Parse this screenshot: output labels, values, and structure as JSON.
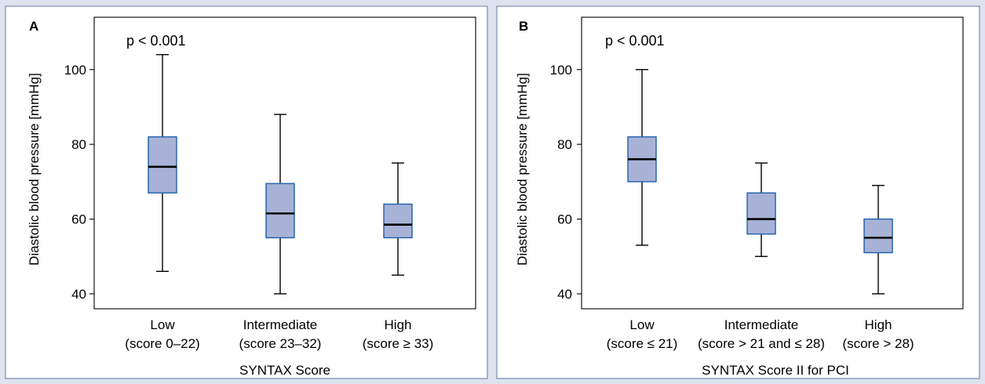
{
  "chart_data": [
    {
      "type": "box",
      "panel_label": "A",
      "annotation": "p < 0.001",
      "ylabel": "Diastolic blood pressure [mmHg]",
      "xlabel": "SYNTAX Score",
      "ylim": [
        36,
        114
      ],
      "yticks": [
        "40",
        "60",
        "80",
        "100"
      ],
      "categories": [
        {
          "line1": "Low",
          "line2": "(score 0–22)"
        },
        {
          "line1": "Intermediate",
          "line2": "(score 23–32)"
        },
        {
          "line1": "High",
          "line2": "(score ≥ 33)"
        }
      ],
      "boxes": [
        {
          "min": 46,
          "q1": 67,
          "median": 74,
          "q3": 82,
          "max": 104
        },
        {
          "min": 40,
          "q1": 55,
          "median": 61.5,
          "q3": 69.5,
          "max": 88
        },
        {
          "min": 45,
          "q1": 55,
          "median": 58.5,
          "q3": 64,
          "max": 75
        }
      ],
      "colors": {
        "box_fill": "#a7b2d6",
        "box_edge": "#1f5fa8"
      }
    },
    {
      "type": "box",
      "panel_label": "B",
      "annotation": "p < 0.001",
      "ylabel": "Diastolic blood pressure [mmHg]",
      "xlabel": "SYNTAX Score II for PCI",
      "ylim": [
        36,
        114
      ],
      "yticks": [
        "40",
        "60",
        "80",
        "100"
      ],
      "categories": [
        {
          "line1": "Low",
          "line2": "(score ≤ 21)"
        },
        {
          "line1": "Intermediate",
          "line2": "(score > 21 and ≤ 28)"
        },
        {
          "line1": "High",
          "line2": "(score > 28)"
        }
      ],
      "boxes": [
        {
          "min": 53,
          "q1": 70,
          "median": 76,
          "q3": 82,
          "max": 100
        },
        {
          "min": 50,
          "q1": 56,
          "median": 60,
          "q3": 67,
          "max": 75
        },
        {
          "min": 40,
          "q1": 51,
          "median": 55,
          "q3": 60,
          "max": 69
        }
      ],
      "colors": {
        "box_fill": "#a7b2d6",
        "box_edge": "#1f5fa8"
      }
    }
  ]
}
